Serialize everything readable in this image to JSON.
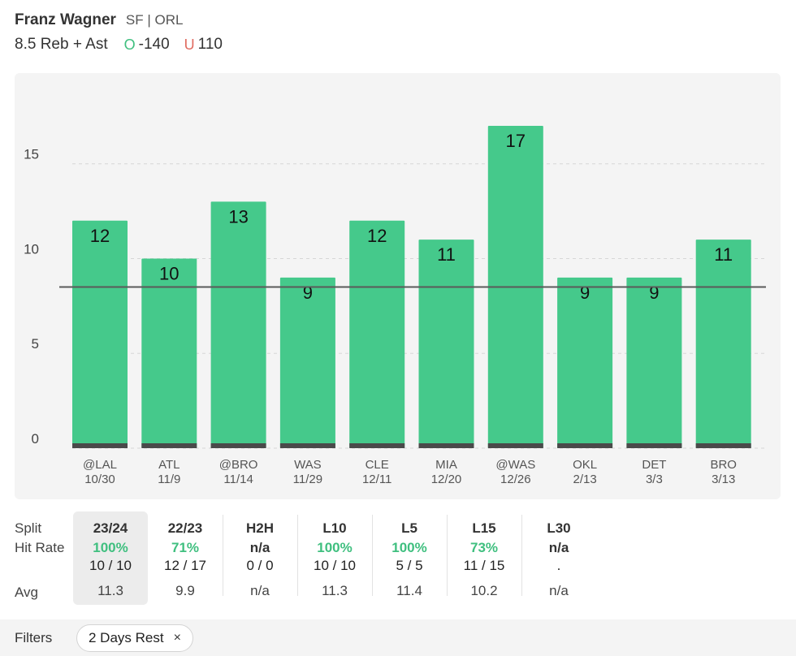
{
  "header": {
    "player_name": "Franz Wagner",
    "team": "SF | ORL",
    "prop": "8.5 Reb + Ast",
    "over": {
      "icon": "O",
      "odds": "-140",
      "color": "#3fbf7f"
    },
    "under": {
      "icon": "U",
      "odds": "110",
      "color": "#e06a5f"
    }
  },
  "chart_data": {
    "type": "bar",
    "categories": [
      "@LAL",
      "ATL",
      "@BRO",
      "WAS",
      "CLE",
      "MIA",
      "@WAS",
      "OKL",
      "DET",
      "BRO"
    ],
    "dates": [
      "10/30",
      "11/9",
      "11/14",
      "11/29",
      "12/11",
      "12/20",
      "12/26",
      "2/13",
      "3/3",
      "3/13"
    ],
    "values": [
      12,
      10,
      13,
      9,
      12,
      11,
      17,
      9,
      9,
      11
    ],
    "line": 8.5,
    "yticks": [
      0,
      5,
      10,
      15
    ],
    "ylim": [
      0,
      18.5
    ],
    "grid": true,
    "bar_color": "#45c98b",
    "title": "",
    "xlabel": "",
    "ylabel": ""
  },
  "splits": {
    "row_labels": {
      "split": "Split",
      "hit_rate": "Hit Rate",
      "avg": "Avg"
    },
    "columns": [
      {
        "name": "23/24",
        "rate": "100%",
        "record": "10 / 10",
        "avg": "11.3",
        "selected": true,
        "rate_color": "#3fbf7f"
      },
      {
        "name": "22/23",
        "rate": "71%",
        "record": "12 / 17",
        "avg": "9.9",
        "selected": false,
        "rate_color": "#3fbf7f"
      },
      {
        "name": "H2H",
        "rate": "n/a",
        "record": "0 / 0",
        "avg": "n/a",
        "selected": false,
        "rate_color": "#333333"
      },
      {
        "name": "L10",
        "rate": "100%",
        "record": "10 / 10",
        "avg": "11.3",
        "selected": false,
        "rate_color": "#3fbf7f"
      },
      {
        "name": "L5",
        "rate": "100%",
        "record": "5 / 5",
        "avg": "11.4",
        "selected": false,
        "rate_color": "#3fbf7f"
      },
      {
        "name": "L15",
        "rate": "73%",
        "record": "11 / 15",
        "avg": "10.2",
        "selected": false,
        "rate_color": "#3fbf7f"
      },
      {
        "name": "L30",
        "rate": "n/a",
        "record": ".",
        "avg": "n/a",
        "selected": false,
        "rate_color": "#333333"
      }
    ]
  },
  "filters": {
    "label": "Filters",
    "chips": [
      {
        "label": "2 Days Rest",
        "close": "×"
      }
    ]
  }
}
